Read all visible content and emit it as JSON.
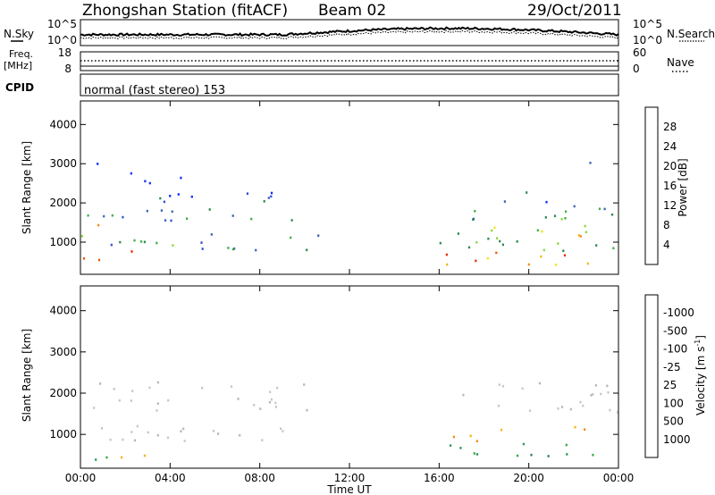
{
  "header": {
    "station": "Zhongshan Station (fitACF)",
    "beam": "Beam 02",
    "date": "29/Oct/2011"
  },
  "nsky_panel": {
    "left_label": "N.Sky",
    "right_label": "N.Search",
    "left_ticks": [
      "10^5",
      "10^0"
    ],
    "right_ticks": [
      "10^5",
      "10^0"
    ]
  },
  "freq_panel": {
    "left_label_1": "Freq.",
    "left_label_2": "[MHz]",
    "right_label": "Nave",
    "left_ticks": [
      "18",
      "8"
    ],
    "right_ticks": [
      "60",
      "0"
    ]
  },
  "cpid_panel": {
    "label": "CPID",
    "mode_text": "normal (fast stereo) 153"
  },
  "chart_data": [
    {
      "type": "heatmap",
      "title": "",
      "xlabel": "Time UT",
      "ylabel": "Slant Range [km]",
      "x_ticks": [
        "00:00",
        "04:00",
        "08:00",
        "12:00",
        "16:00",
        "20:00",
        "00:00"
      ],
      "y_ticks": [
        1000,
        2000,
        3000,
        4000
      ],
      "ylim": [
        180,
        4600
      ],
      "colorbar": {
        "label": "Power [dB]",
        "ticks": [
          "4",
          "8",
          "12",
          "16",
          "20",
          "24",
          "28"
        ],
        "colors": [
          "#0a2ef5",
          "#2d4fd6",
          "#3a64b8",
          "#2f8a52",
          "#3fae46",
          "#8ad83e",
          "#f2e21c",
          "#f6b616",
          "#f58a10",
          "#f05a08",
          "#e62d04",
          "#e00000"
        ]
      },
      "regions": [
        {
          "t0": 0.0,
          "t1": 2.3,
          "r0": 480,
          "r1": 860,
          "level": 0.85
        },
        {
          "t0": 0.0,
          "t1": 1.4,
          "r0": 1450,
          "r1": 1700,
          "level": 0.68
        },
        {
          "t0": 0.0,
          "t1": 11.0,
          "r0": 820,
          "r1": 1250,
          "level": 0.32
        },
        {
          "t0": 0.3,
          "t1": 10.8,
          "r0": 1550,
          "r1": 1900,
          "level": 0.26
        },
        {
          "t0": 0.5,
          "t1": 10.5,
          "r0": 2050,
          "r1": 2300,
          "level": 0.12
        },
        {
          "t0": 1.5,
          "t1": 4.5,
          "r0": 2450,
          "r1": 2800,
          "level": 0.08
        },
        {
          "t0": 0.0,
          "t1": 1.0,
          "r0": 2900,
          "r1": 3100,
          "level": 0.08
        },
        {
          "t0": 16.2,
          "t1": 23.8,
          "r0": 450,
          "r1": 800,
          "level": 0.72
        },
        {
          "t0": 16.0,
          "t1": 23.8,
          "r0": 800,
          "r1": 1450,
          "level": 0.38
        },
        {
          "t0": 17.0,
          "t1": 24.0,
          "r0": 1550,
          "r1": 2000,
          "level": 0.28
        },
        {
          "t0": 18.2,
          "t1": 20.8,
          "r0": 2050,
          "r1": 2300,
          "level": 0.12
        },
        {
          "t0": 22.2,
          "t1": 24.0,
          "r0": 2950,
          "r1": 3100,
          "level": 0.1
        },
        {
          "t0": 22.0,
          "t1": 24.0,
          "r0": 1150,
          "r1": 1400,
          "level": 0.55
        }
      ]
    },
    {
      "type": "heatmap",
      "title": "",
      "xlabel": "Time UT",
      "ylabel": "Slant Range [km]",
      "x_ticks": [
        "00:00",
        "04:00",
        "08:00",
        "12:00",
        "16:00",
        "20:00",
        "00:00"
      ],
      "y_ticks": [
        1000,
        2000,
        3000,
        4000
      ],
      "ylim": [
        180,
        4600
      ],
      "colorbar": {
        "label": "Velocity [m s^-1]",
        "ticks": [
          "1000",
          "500",
          "100",
          "25",
          "-25",
          "-100",
          "-500",
          "-1000"
        ],
        "colors": [
          "#1a2ed0",
          "#2a58b0",
          "#2f8050",
          "#3aa840",
          "#7fd43a",
          "#c8c8c0",
          "#c8c8c0",
          "#f6b216",
          "#f48a10",
          "#ef5a08",
          "#e82a04",
          "#e00000"
        ]
      },
      "regions": [
        {
          "t0": 0.0,
          "t1": 11.0,
          "r0": 820,
          "r1": 1250,
          "vclass": "gray"
        },
        {
          "t0": 0.3,
          "t1": 10.8,
          "r0": 1550,
          "r1": 1900,
          "vclass": "gray"
        },
        {
          "t0": 0.5,
          "t1": 10.5,
          "r0": 2050,
          "r1": 2300,
          "vclass": "gray"
        },
        {
          "t0": 0.0,
          "t1": 2.3,
          "r0": 400,
          "r1": 680,
          "vclass": "green"
        },
        {
          "t0": 1.2,
          "t1": 3.6,
          "r0": 380,
          "r1": 620,
          "vclass": "orange"
        },
        {
          "t0": 16.0,
          "t1": 23.8,
          "r0": 450,
          "r1": 800,
          "vclass": "green"
        },
        {
          "t0": 16.2,
          "t1": 19.0,
          "r0": 800,
          "r1": 1150,
          "vclass": "orange"
        },
        {
          "t0": 17.0,
          "t1": 24.0,
          "r0": 1550,
          "r1": 2300,
          "vclass": "gray"
        },
        {
          "t0": 22.0,
          "t1": 24.0,
          "r0": 1100,
          "r1": 1400,
          "vclass": "orange"
        }
      ]
    }
  ]
}
